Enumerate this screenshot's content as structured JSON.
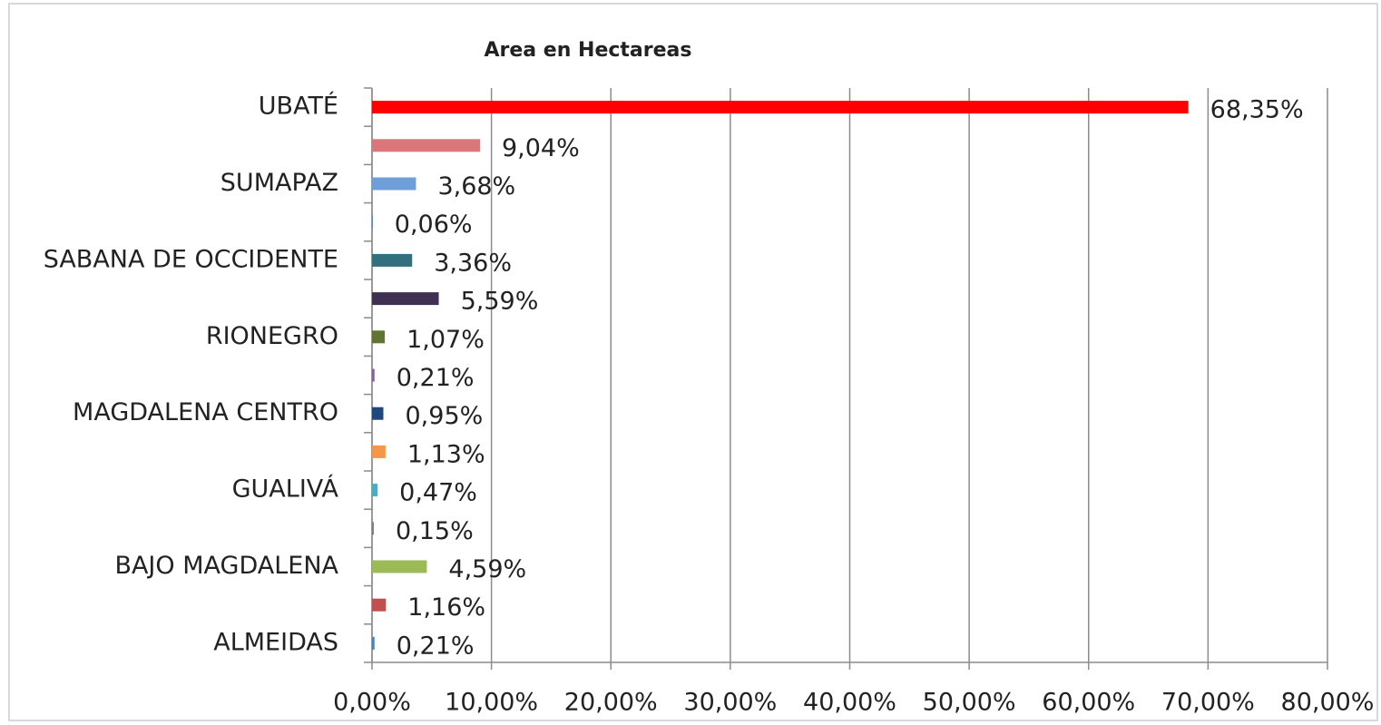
{
  "chart_data": {
    "type": "bar",
    "orientation": "horizontal",
    "title": "Area en Hectareas",
    "categories": [
      "UBATÉ",
      null,
      "SUMAPAZ",
      null,
      "SABANA DE OCCIDENTE",
      null,
      "RIONEGRO",
      null,
      "MAGDALENA CENTRO",
      null,
      "GUALIVÁ",
      null,
      "BAJO MAGDALENA",
      null,
      "ALMEIDAS"
    ],
    "values": [
      68.35,
      9.04,
      3.68,
      0.06,
      3.36,
      5.59,
      1.07,
      0.21,
      0.95,
      1.13,
      0.47,
      0.15,
      4.59,
      1.16,
      0.21
    ],
    "value_labels": [
      "68,35%",
      "9,04%",
      "3,68%",
      "0,06%",
      "3,36%",
      "5,59%",
      "1,07%",
      "0,21%",
      "0,95%",
      "1,13%",
      "0,47%",
      "0,15%",
      "4,59%",
      "1,16%",
      "0,21%"
    ],
    "colors": [
      "#ff0000",
      "#d9787a",
      "#6f9fd8",
      "#4f81bd",
      "#31707f",
      "#403152",
      "#5f7530",
      "#8064a2",
      "#1f497d",
      "#f79646",
      "#4bacc6",
      "#7f7f7f",
      "#9bbb59",
      "#c0504d",
      "#4f81bd"
    ],
    "xlim": [
      0,
      80
    ],
    "xticks": [
      {
        "value": 0,
        "label": "0,00%"
      },
      {
        "value": 10,
        "label": "10,00%"
      },
      {
        "value": 20,
        "label": "20,00%"
      },
      {
        "value": 30,
        "label": "30,00%"
      },
      {
        "value": 40,
        "label": "40,00%"
      },
      {
        "value": 50,
        "label": "50,00%"
      },
      {
        "value": 60,
        "label": "60,00%"
      },
      {
        "value": 70,
        "label": "70,00%"
      },
      {
        "value": 80,
        "label": "80,00%"
      }
    ],
    "grid": true
  }
}
